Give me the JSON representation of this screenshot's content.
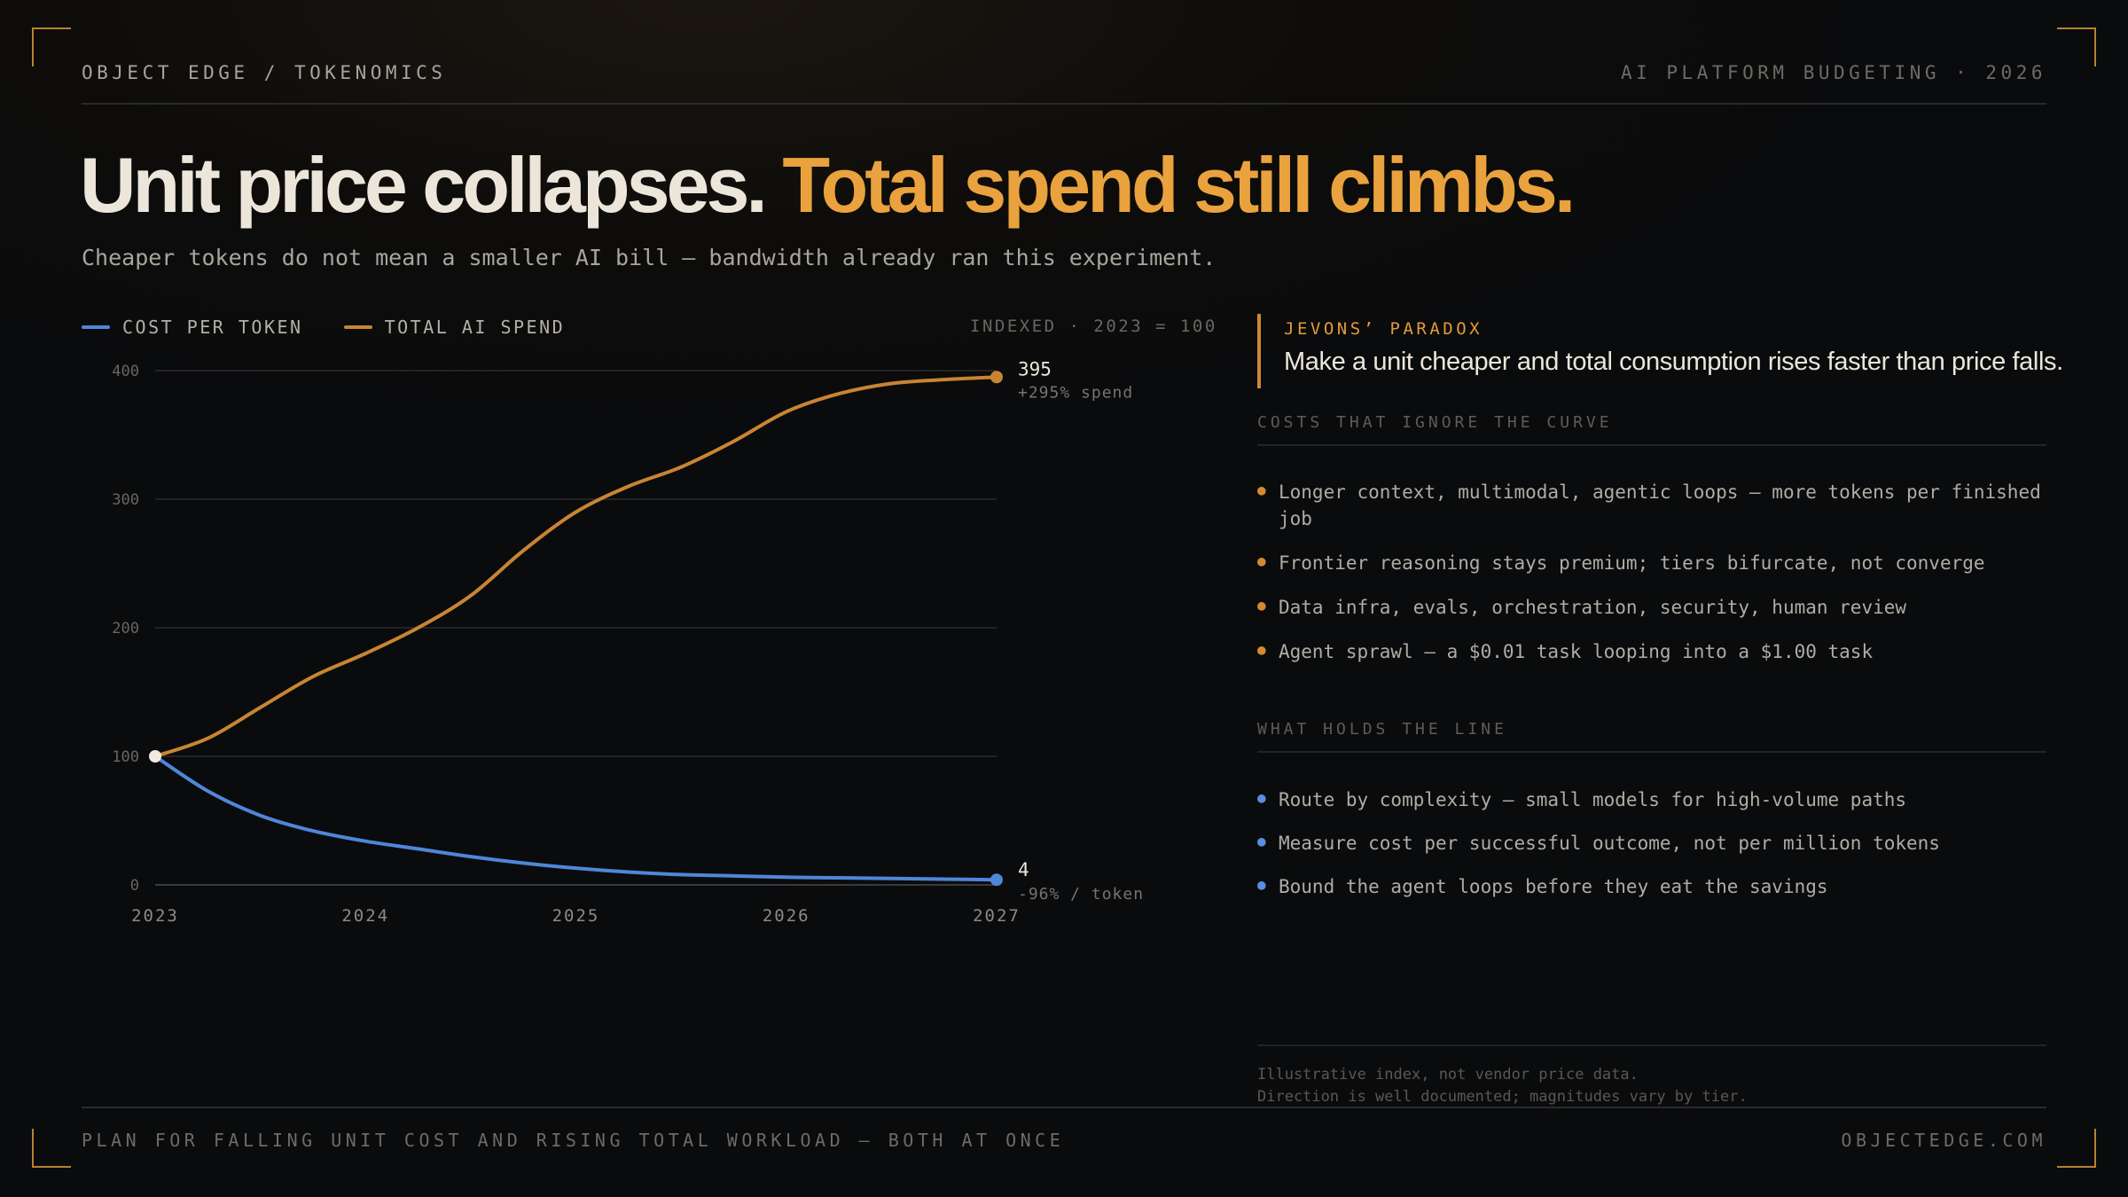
{
  "header": {
    "brand": "OBJECT EDGE / TOKENOMICS",
    "context": "AI PLATFORM BUDGETING · 2026"
  },
  "headline": {
    "part1": "Unit price collapses.",
    "part2": "Total spend still climbs."
  },
  "subtitle": "Cheaper tokens do not mean a smaller AI bill — bandwidth already ran this experiment.",
  "legend": {
    "series1": "COST PER TOKEN",
    "series2": "TOTAL AI SPEND",
    "note": "INDEXED · 2023 = 100"
  },
  "colors": {
    "cost": "#4f86d9",
    "spend": "#c98433",
    "accent": "#e9a23e"
  },
  "chart_data": {
    "type": "line",
    "x": [
      2023,
      2023.25,
      2023.5,
      2023.75,
      2024,
      2024.25,
      2024.5,
      2024.75,
      2025,
      2025.25,
      2025.5,
      2025.75,
      2026,
      2026.25,
      2026.5,
      2026.75,
      2027
    ],
    "xticks": [
      "2023",
      "2024",
      "2025",
      "2026",
      "2027"
    ],
    "yticks": [
      "400",
      "300",
      "200",
      "100",
      "0"
    ],
    "ylim": [
      0,
      400
    ],
    "series": [
      {
        "name": "COST PER TOKEN",
        "values": [
          100,
          73,
          54,
          42,
          34,
          28,
          22,
          17,
          13,
          10,
          8,
          7,
          6,
          5.5,
          5,
          4.5,
          4
        ]
      },
      {
        "name": "TOTAL AI SPEND",
        "values": [
          100,
          114,
          138,
          162,
          180,
          200,
          225,
          260,
          290,
          310,
          325,
          345,
          368,
          382,
          390,
          393,
          395
        ]
      }
    ],
    "annotations": {
      "spend_value": "395",
      "spend_note": "+295% spend",
      "cost_value": "4",
      "cost_note": "-96% / token"
    }
  },
  "paradox": {
    "kicker": "JEVONS’ PARADOX",
    "text": "Make a unit cheaper and total consumption rises faster than price falls."
  },
  "costs": {
    "heading": "COSTS THAT IGNORE THE CURVE",
    "items": [
      "Longer context, multimodal, agentic loops — more tokens per finished job",
      "Frontier reasoning stays premium; tiers bifurcate, not converge",
      "Data infra, evals, orchestration, security, human review",
      "Agent sprawl — a $0.01 task looping into a $1.00 task"
    ]
  },
  "holds": {
    "heading": "WHAT HOLDS THE LINE",
    "items": [
      "Route by complexity — small models for high-volume paths",
      "Measure cost per successful outcome, not per million tokens",
      "Bound the agent loops before they eat the savings"
    ]
  },
  "footnote": {
    "line1": "Illustrative index, not vendor price data.",
    "line2": "Direction is well documented; magnitudes vary by tier."
  },
  "footer": {
    "tagline": "PLAN FOR FALLING UNIT COST AND RISING TOTAL WORKLOAD — BOTH AT ONCE",
    "site": "OBJECTEDGE.COM"
  }
}
